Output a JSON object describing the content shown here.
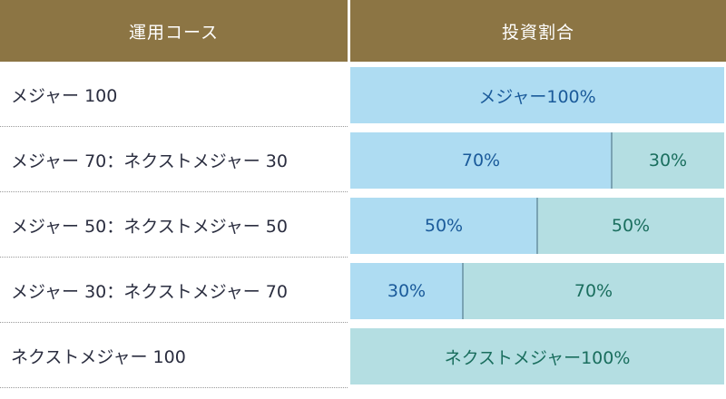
{
  "chart_data": {
    "type": "table",
    "headers": [
      "運用コース",
      "投資割合"
    ],
    "series_colors": {
      "major": "#aedcf2",
      "next_major": "#b4dee2",
      "major_text": "#1a5a9a",
      "next_major_text": "#1a6e5e",
      "header_bg": "#8c7544",
      "separator": "#7aa3b3"
    },
    "rows": [
      {
        "label": "メジャー 100",
        "segments": [
          {
            "series": "major",
            "value": 100,
            "label": "メジャー100%"
          }
        ]
      },
      {
        "label": "メジャー 70：ネクストメジャー 30",
        "segments": [
          {
            "series": "major",
            "value": 70,
            "label": "70%"
          },
          {
            "series": "next_major",
            "value": 30,
            "label": "30%"
          }
        ]
      },
      {
        "label": "メジャー 50：ネクストメジャー 50",
        "segments": [
          {
            "series": "major",
            "value": 50,
            "label": "50%"
          },
          {
            "series": "next_major",
            "value": 50,
            "label": "50%"
          }
        ]
      },
      {
        "label": "メジャー 30：ネクストメジャー 70",
        "segments": [
          {
            "series": "major",
            "value": 30,
            "label": "30%"
          },
          {
            "series": "next_major",
            "value": 70,
            "label": "70%"
          }
        ]
      },
      {
        "label": "ネクストメジャー 100",
        "segments": [
          {
            "series": "next_major",
            "value": 100,
            "label": "ネクストメジャー100%"
          }
        ]
      }
    ]
  }
}
